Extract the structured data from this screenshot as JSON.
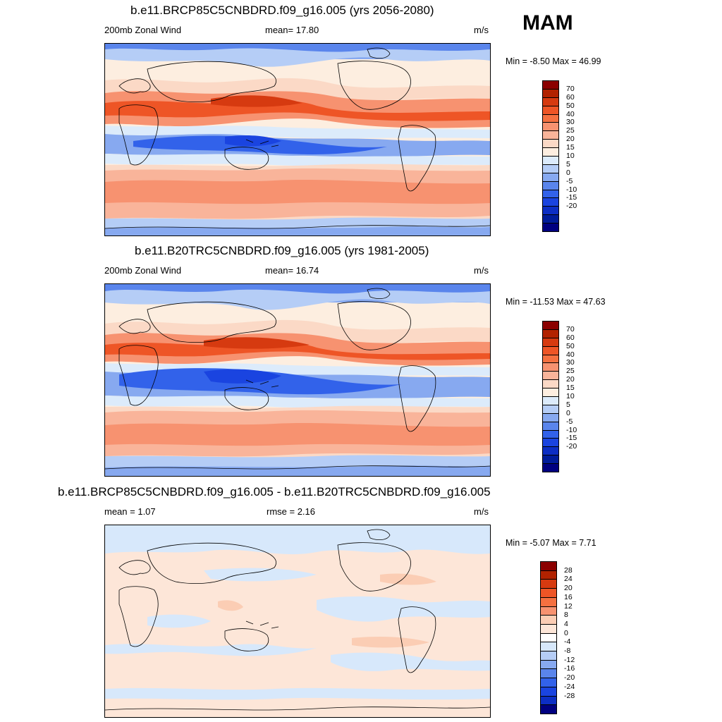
{
  "season": "MAM",
  "panels": [
    {
      "id": "future",
      "title": "b.e11.BRCP85C5CNBDRD.f09_g16.005 (yrs 2056-2080)",
      "left_label": "200mb Zonal Wind",
      "center_label": "mean=  17.80",
      "units": "m/s",
      "minmax": "Min =  -8.50 Max =  46.99",
      "levels": [
        "70",
        "60",
        "50",
        "40",
        "30",
        "25",
        "20",
        "15",
        "10",
        "5",
        "0",
        "-5",
        "-10",
        "-15",
        "-20"
      ],
      "colors": [
        "#8b0000",
        "#b22200",
        "#d63a10",
        "#ee5526",
        "#f57040",
        "#f79270",
        "#f9b49a",
        "#fbd9c6",
        "#fdeee0",
        "#dcebfb",
        "#b5cdf6",
        "#87a9f0",
        "#5a85ec",
        "#3262ea",
        "#1a44e0",
        "#0c2ec4",
        "#001c9a",
        "#000080"
      ],
      "tone": "warm"
    },
    {
      "id": "historical",
      "title": "b.e11.B20TRC5CNBDRD.f09_g16.005 (yrs 1981-2005)",
      "left_label": "200mb Zonal Wind",
      "center_label": "mean=  16.74",
      "units": "m/s",
      "minmax": "Min = -11.53 Max =  47.63",
      "levels": [
        "70",
        "60",
        "50",
        "40",
        "30",
        "25",
        "20",
        "15",
        "10",
        "5",
        "0",
        "-5",
        "-10",
        "-15",
        "-20"
      ],
      "colors": [
        "#8b0000",
        "#b22200",
        "#d63a10",
        "#ee5526",
        "#f57040",
        "#f79270",
        "#f9b49a",
        "#fbd9c6",
        "#fdeee0",
        "#dcebfb",
        "#b5cdf6",
        "#87a9f0",
        "#5a85ec",
        "#3262ea",
        "#1a44e0",
        "#0c2ec4",
        "#001c9a",
        "#000080"
      ],
      "tone": "warm"
    },
    {
      "id": "difference",
      "title": "b.e11.BRCP85C5CNBDRD.f09_g16.005 - b.e11.B20TRC5CNBDRD.f09_g16.005",
      "left_label": "mean =   1.07",
      "center_label": "rmse =   2.16",
      "units": "m/s",
      "minmax": "Min =  -5.07 Max =   7.71",
      "levels": [
        "28",
        "24",
        "20",
        "16",
        "12",
        "8",
        "4",
        "0",
        "-4",
        "-8",
        "-12",
        "-16",
        "-20",
        "-24",
        "-28"
      ],
      "colors": [
        "#8b0000",
        "#b22200",
        "#d63a10",
        "#ee5526",
        "#f57040",
        "#f79270",
        "#fbcdb4",
        "#fde6d8",
        "#ffffff",
        "#d7e8fb",
        "#b5cdf6",
        "#87a9f0",
        "#5a85ec",
        "#3262ea",
        "#1a44e0",
        "#0c2ec4",
        "#000080"
      ],
      "tone": "diff"
    }
  ]
}
